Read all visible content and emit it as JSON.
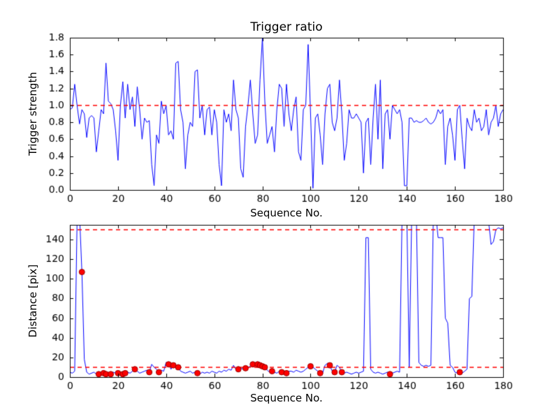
{
  "figure": {
    "background": "#ffffff",
    "line_color": "#0000ff",
    "threshold_color": "#ff0000",
    "marker_color": "#ff0000",
    "marker_edge_color": "#990000",
    "axis_color": "#000000"
  },
  "chart_data": [
    {
      "type": "line",
      "title": "Trigger ratio",
      "xlabel": "Sequence No.",
      "ylabel": "Trigger strength",
      "xlim": [
        0,
        180
      ],
      "ylim": [
        0,
        1.8
      ],
      "grid": false,
      "legend": false,
      "xticks": [
        0,
        20,
        40,
        60,
        80,
        100,
        120,
        140,
        160,
        180
      ],
      "xtick_labels": [
        "0",
        "20",
        "40",
        "60",
        "80",
        "100",
        "120",
        "140",
        "160",
        "180"
      ],
      "yticks": [
        0.0,
        0.2,
        0.4,
        0.6,
        0.8,
        1.0,
        1.2,
        1.4,
        1.6,
        1.8
      ],
      "ytick_labels": [
        "0.0",
        "0.2",
        "0.4",
        "0.6",
        "0.8",
        "1.0",
        "1.2",
        "1.4",
        "1.6",
        "1.8"
      ],
      "thresholds": [
        1.0
      ],
      "x": [
        0,
        1,
        2,
        3,
        4,
        5,
        6,
        7,
        8,
        9,
        10,
        11,
        12,
        13,
        14,
        15,
        16,
        17,
        18,
        19,
        20,
        21,
        22,
        23,
        24,
        25,
        26,
        27,
        28,
        29,
        30,
        31,
        32,
        33,
        34,
        35,
        36,
        37,
        38,
        39,
        40,
        41,
        42,
        43,
        44,
        45,
        46,
        47,
        48,
        49,
        50,
        51,
        52,
        53,
        54,
        55,
        56,
        57,
        58,
        59,
        60,
        61,
        62,
        63,
        64,
        65,
        66,
        67,
        68,
        69,
        70,
        71,
        72,
        73,
        74,
        75,
        76,
        77,
        78,
        79,
        80,
        81,
        82,
        83,
        84,
        85,
        86,
        87,
        88,
        89,
        90,
        91,
        92,
        93,
        94,
        95,
        96,
        97,
        98,
        99,
        100,
        101,
        102,
        103,
        104,
        105,
        106,
        107,
        108,
        109,
        110,
        111,
        112,
        113,
        114,
        115,
        116,
        117,
        118,
        119,
        120,
        121,
        122,
        123,
        124,
        125,
        126,
        127,
        128,
        129,
        130,
        131,
        132,
        133,
        134,
        135,
        136,
        137,
        138,
        139,
        140,
        141,
        142,
        143,
        144,
        145,
        146,
        147,
        148,
        149,
        150,
        151,
        152,
        153,
        154,
        155,
        156,
        157,
        158,
        159,
        160,
        161,
        162,
        163,
        164,
        165,
        166,
        167,
        168,
        169,
        170,
        171,
        172,
        173,
        174,
        175,
        176,
        177,
        178,
        179,
        180
      ],
      "y": [
        0.95,
        0.97,
        1.25,
        1.0,
        0.78,
        0.95,
        0.9,
        0.62,
        0.85,
        0.88,
        0.85,
        0.45,
        0.7,
        0.95,
        0.9,
        1.5,
        1.05,
        1.02,
        0.95,
        0.7,
        0.35,
        1.0,
        1.28,
        0.85,
        1.25,
        0.95,
        1.1,
        0.75,
        1.22,
        0.95,
        0.6,
        0.85,
        0.8,
        0.82,
        0.3,
        0.05,
        0.65,
        0.55,
        1.05,
        0.9,
        1.0,
        0.65,
        0.7,
        0.6,
        1.5,
        1.52,
        0.95,
        0.8,
        0.25,
        0.65,
        0.8,
        0.75,
        1.4,
        1.42,
        0.85,
        1.0,
        0.65,
        0.95,
        0.98,
        0.65,
        0.95,
        0.8,
        0.3,
        0.05,
        0.95,
        0.8,
        0.9,
        0.7,
        1.3,
        0.95,
        0.85,
        0.25,
        0.15,
        0.75,
        1.0,
        1.3,
        0.9,
        0.55,
        0.65,
        1.3,
        1.8,
        1.05,
        0.55,
        0.65,
        0.75,
        0.45,
        0.95,
        1.25,
        1.2,
        0.75,
        1.25,
        0.9,
        0.7,
        0.95,
        1.1,
        0.45,
        0.35,
        0.95,
        1.0,
        1.72,
        0.9,
        0.02,
        0.85,
        0.9,
        0.65,
        0.3,
        0.9,
        1.2,
        1.25,
        0.8,
        0.7,
        0.85,
        1.3,
        0.9,
        0.35,
        0.55,
        0.95,
        0.85,
        0.85,
        0.9,
        0.85,
        0.8,
        0.2,
        0.8,
        0.85,
        0.3,
        0.85,
        1.25,
        0.6,
        1.3,
        0.25,
        0.9,
        0.95,
        0.6,
        1.0,
        0.95,
        0.9,
        0.95,
        0.8,
        0.05,
        0.05,
        0.85,
        0.85,
        0.8,
        0.82,
        0.8,
        0.8,
        0.82,
        0.85,
        0.8,
        0.78,
        0.8,
        0.85,
        0.95,
        0.9,
        0.95,
        0.3,
        0.75,
        0.85,
        0.65,
        0.35,
        0.95,
        1.0,
        0.6,
        0.25,
        0.85,
        0.75,
        0.7,
        0.95,
        0.8,
        0.85,
        0.7,
        0.75,
        0.95,
        0.65,
        0.8,
        0.85,
        1.0,
        0.75,
        0.9,
        0.95
      ]
    },
    {
      "type": "line",
      "title": "",
      "xlabel": "Sequence No.",
      "ylabel": "Distance [pix]",
      "xlim": [
        0,
        180
      ],
      "ylim": [
        0,
        155
      ],
      "grid": false,
      "legend": false,
      "xticks": [
        0,
        20,
        40,
        60,
        80,
        100,
        120,
        140,
        160,
        180
      ],
      "xtick_labels": [
        "0",
        "20",
        "40",
        "60",
        "80",
        "100",
        "120",
        "140",
        "160",
        "180"
      ],
      "yticks": [
        0,
        20,
        40,
        60,
        80,
        100,
        120,
        140
      ],
      "ytick_labels": [
        "0",
        "20",
        "40",
        "60",
        "80",
        "100",
        "120",
        "140"
      ],
      "thresholds": [
        150,
        10
      ],
      "x": [
        0,
        1,
        2,
        3,
        4,
        5,
        6,
        7,
        8,
        9,
        10,
        11,
        12,
        13,
        14,
        15,
        16,
        17,
        18,
        19,
        20,
        21,
        22,
        23,
        24,
        25,
        26,
        27,
        28,
        29,
        30,
        31,
        32,
        33,
        34,
        35,
        36,
        37,
        38,
        39,
        40,
        41,
        42,
        43,
        44,
        45,
        46,
        47,
        48,
        49,
        50,
        51,
        52,
        53,
        54,
        55,
        56,
        57,
        58,
        59,
        60,
        61,
        62,
        63,
        64,
        65,
        66,
        67,
        68,
        69,
        70,
        71,
        72,
        73,
        74,
        75,
        76,
        77,
        78,
        79,
        80,
        81,
        82,
        83,
        84,
        85,
        86,
        87,
        88,
        89,
        90,
        91,
        92,
        93,
        94,
        95,
        96,
        97,
        98,
        99,
        100,
        101,
        102,
        103,
        104,
        105,
        106,
        107,
        108,
        109,
        110,
        111,
        112,
        113,
        114,
        115,
        116,
        117,
        118,
        119,
        120,
        121,
        122,
        123,
        124,
        125,
        126,
        127,
        128,
        129,
        130,
        131,
        132,
        133,
        134,
        135,
        136,
        137,
        138,
        139,
        140,
        141,
        142,
        143,
        144,
        145,
        146,
        147,
        148,
        149,
        150,
        151,
        152,
        153,
        154,
        155,
        156,
        157,
        158,
        159,
        160,
        161,
        162,
        163,
        164,
        165,
        166,
        167,
        168,
        169,
        170,
        171,
        172,
        173,
        174,
        175,
        176,
        177,
        178,
        179,
        180
      ],
      "y": [
        5,
        4,
        6,
        160,
        166,
        107,
        18,
        5,
        3,
        4,
        5,
        3,
        3,
        2,
        4,
        3,
        4,
        3,
        5,
        4,
        4,
        3,
        3,
        4,
        5,
        4,
        6,
        8,
        6,
        4,
        5,
        6,
        7,
        5,
        13,
        10,
        8,
        5,
        7,
        6,
        15,
        13,
        8,
        12,
        11,
        10,
        6,
        5,
        4,
        5,
        6,
        4,
        5,
        4,
        3,
        5,
        4,
        5,
        4,
        6,
        5,
        4,
        6,
        5,
        7,
        6,
        8,
        7,
        12,
        8,
        8,
        9,
        8,
        9,
        10,
        11,
        13,
        12,
        13,
        12,
        11,
        10,
        7,
        5,
        6,
        5,
        4,
        6,
        5,
        4,
        4,
        6,
        6,
        5,
        7,
        6,
        5,
        6,
        8,
        10,
        11,
        10,
        8,
        6,
        4,
        4,
        12,
        14,
        12,
        6,
        5,
        12,
        10,
        5,
        4,
        5,
        4,
        3,
        4,
        5,
        4,
        5,
        6,
        142,
        142,
        8,
        5,
        4,
        5,
        4,
        3,
        4,
        5,
        3,
        4,
        5,
        6,
        5,
        160,
        170,
        165,
        10,
        160,
        168,
        160,
        15,
        12,
        11,
        12,
        11,
        12,
        160,
        166,
        142,
        142,
        142,
        60,
        55,
        12,
        10,
        5,
        4,
        5,
        4,
        6,
        8,
        80,
        82,
        160,
        172,
        175,
        170,
        166,
        160,
        158,
        135,
        138,
        150,
        152,
        151,
        152
      ],
      "scatter": {
        "x": [
          5,
          12,
          14,
          15,
          17,
          20,
          22,
          23,
          27,
          33,
          37,
          41,
          43,
          45,
          53,
          70,
          73,
          76,
          78,
          79,
          80,
          81,
          84,
          88,
          90,
          100,
          104,
          108,
          110,
          113,
          133,
          162
        ],
        "y": [
          107,
          3,
          4,
          3,
          3,
          4,
          3,
          4,
          8,
          5,
          5,
          13,
          12,
          10,
          4,
          8,
          9,
          13,
          13,
          12,
          11,
          10,
          6,
          5,
          4,
          11,
          4,
          12,
          5,
          5,
          3,
          5
        ]
      }
    }
  ]
}
